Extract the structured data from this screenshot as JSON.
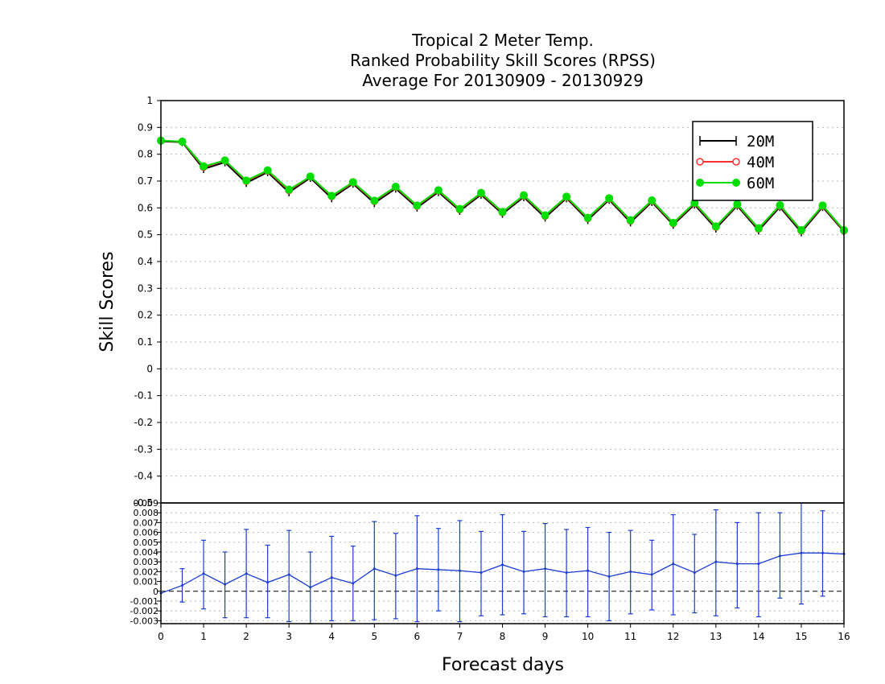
{
  "chart_data": [
    {
      "type": "line",
      "title": [
        "Tropical 2 Meter Temp.",
        "Ranked Probability Skill Scores (RPSS)",
        "Average For 20130909 - 20130929"
      ],
      "xlabel": "",
      "ylabel": "Skill Scores",
      "xlim": [
        0,
        16
      ],
      "ylim": [
        -0.5,
        1
      ],
      "y_ticks": [
        "1",
        "0.9",
        "0.8",
        "0.7",
        "0.6",
        "0.5",
        "0.4",
        "0.3",
        "0.2",
        "0.1",
        "0",
        "-0.1",
        "-0.2",
        "-0.3",
        "-0.4",
        "-0.5"
      ],
      "grid": true,
      "legend_position": "top-right",
      "x": [
        0,
        0.5,
        1,
        1.5,
        2,
        2.5,
        3,
        3.5,
        4,
        4.5,
        5,
        5.5,
        6,
        6.5,
        7,
        7.5,
        8,
        8.5,
        9,
        9.5,
        10,
        10.5,
        11,
        11.5,
        12,
        12.5,
        13,
        13.5,
        14,
        14.5,
        15,
        15.5,
        16
      ],
      "series": [
        {
          "name": "20M",
          "color": "#000000",
          "marker": "cross",
          "values": [
            0.848,
            0.845,
            0.745,
            0.77,
            0.693,
            0.733,
            0.658,
            0.712,
            0.636,
            0.69,
            0.618,
            0.672,
            0.601,
            0.659,
            0.589,
            0.649,
            0.578,
            0.64,
            0.564,
            0.636,
            0.555,
            0.63,
            0.546,
            0.622,
            0.537,
            0.612,
            0.523,
            0.608,
            0.516,
            0.603,
            0.509,
            0.603,
            0.512
          ]
        },
        {
          "name": "40M",
          "color": "#ff3030",
          "marker": "open-circle",
          "values": [
            0.85,
            0.847,
            0.752,
            0.776,
            0.7,
            0.738,
            0.665,
            0.716,
            0.643,
            0.694,
            0.625,
            0.677,
            0.607,
            0.664,
            0.594,
            0.654,
            0.583,
            0.645,
            0.57,
            0.64,
            0.561,
            0.634,
            0.552,
            0.626,
            0.542,
            0.617,
            0.529,
            0.612,
            0.522,
            0.608,
            0.515,
            0.607,
            0.515
          ]
        },
        {
          "name": "60M",
          "color": "#00dd00",
          "marker": "filled-circle",
          "values": [
            0.851,
            0.847,
            0.755,
            0.777,
            0.702,
            0.74,
            0.668,
            0.717,
            0.645,
            0.696,
            0.627,
            0.679,
            0.609,
            0.666,
            0.596,
            0.656,
            0.585,
            0.647,
            0.572,
            0.642,
            0.563,
            0.636,
            0.554,
            0.628,
            0.544,
            0.619,
            0.531,
            0.614,
            0.524,
            0.61,
            0.517,
            0.609,
            0.517
          ]
        }
      ]
    },
    {
      "type": "line",
      "xlabel": "Forecast days",
      "ylabel": "",
      "xlim": [
        0,
        16
      ],
      "ylim": [
        -0.0033,
        0.009
      ],
      "x_ticks": [
        "0",
        "1",
        "2",
        "3",
        "4",
        "5",
        "6",
        "7",
        "8",
        "9",
        "10",
        "11",
        "12",
        "13",
        "14",
        "15",
        "16"
      ],
      "y_ticks": [
        "0.009",
        "0.008",
        "0.007",
        "0.006",
        "0.005",
        "0.004",
        "0.003",
        "0.002",
        "0.001",
        "0",
        "-0.001",
        "-0.002",
        "-0.003"
      ],
      "grid": true,
      "zero_line": true,
      "x": [
        0,
        0.5,
        1,
        1.5,
        2,
        2.5,
        3,
        3.5,
        4,
        4.5,
        5,
        5.5,
        6,
        6.5,
        7,
        7.5,
        8,
        8.5,
        9,
        9.5,
        10,
        10.5,
        11,
        11.5,
        12,
        12.5,
        13,
        13.5,
        14,
        14.5,
        15,
        15.5,
        16
      ],
      "series": [
        {
          "color": "#1a3ccf",
          "values": [
            -0.0002,
            0.0006,
            0.0018,
            0.0007,
            0.0018,
            0.0009,
            0.0017,
            0.0004,
            0.0014,
            0.0008,
            0.0023,
            0.0016,
            0.0023,
            0.0022,
            0.0021,
            0.0019,
            0.0027,
            0.002,
            0.0023,
            0.0019,
            0.0021,
            0.0015,
            0.002,
            0.0017,
            0.0028,
            0.0019,
            0.003,
            0.0028,
            0.0028,
            0.0036,
            0.0039,
            0.0039,
            0.0038
          ],
          "lower": [
            null,
            -0.0011,
            -0.0018,
            -0.0027,
            -0.0027,
            -0.0027,
            -0.0031,
            -0.0033,
            -0.003,
            -0.003,
            -0.0029,
            -0.0028,
            -0.0031,
            -0.002,
            -0.0031,
            -0.0025,
            -0.0024,
            -0.0023,
            -0.0026,
            -0.0026,
            -0.0026,
            -0.003,
            -0.0023,
            -0.0019,
            -0.0024,
            -0.0022,
            -0.0025,
            -0.0017,
            -0.0026,
            -0.0007,
            -0.0013,
            -0.0005,
            null
          ],
          "upper": [
            null,
            0.0023,
            0.0052,
            0.004,
            0.0063,
            0.0047,
            0.0062,
            0.004,
            0.0056,
            0.0046,
            0.0071,
            0.0059,
            0.0077,
            0.0064,
            0.0072,
            0.0061,
            0.0078,
            0.0061,
            0.0069,
            0.0063,
            0.0065,
            0.006,
            0.0062,
            0.0052,
            0.0078,
            0.0058,
            0.0083,
            0.007,
            0.008,
            0.008,
            0.009,
            0.0082,
            null
          ]
        }
      ]
    }
  ]
}
